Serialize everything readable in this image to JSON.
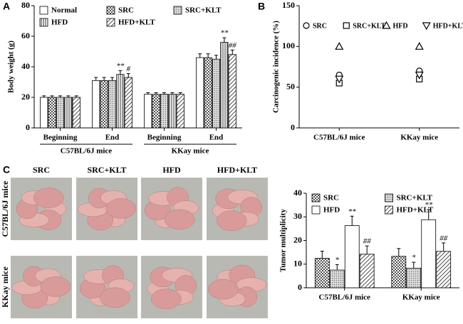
{
  "panel_labels": [
    "A",
    "B",
    "C"
  ],
  "photo_grid": {
    "columns": [
      "SRC",
      "SRC+KLT",
      "HFD",
      "HFD+KLT"
    ],
    "rows": [
      "C57BL/6J mice",
      "KKay mice"
    ]
  },
  "chart_data": [
    {
      "type": "bar",
      "y_label": "Body weight (g)",
      "categories": [
        "Beginning",
        "End",
        "Beginning",
        "End"
      ],
      "category_groups": [
        "C57BL/6J mice",
        "KKay mice"
      ],
      "ylim": [
        0,
        80
      ],
      "yticks": [
        0,
        20,
        40,
        60,
        80
      ],
      "legend": "top-left",
      "legend_columns": 3,
      "series": [
        {
          "name": "Normal",
          "color": "#ffffff",
          "pattern": "solid",
          "values": [
            20,
            31,
            22,
            46
          ],
          "errors": [
            1,
            2,
            1,
            2.5
          ]
        },
        {
          "name": "SRC",
          "color": "#888888",
          "pattern": "checker",
          "values": [
            20,
            31,
            22,
            46
          ],
          "errors": [
            1,
            2,
            1,
            2.5
          ]
        },
        {
          "name": "SRC+KLT",
          "color": "#999999",
          "pattern": "dots",
          "values": [
            20,
            31,
            22,
            45
          ],
          "errors": [
            1,
            2,
            1,
            2.5
          ]
        },
        {
          "name": "HFD",
          "color": "#666666",
          "pattern": "vertical",
          "values": [
            20,
            35,
            22,
            56
          ],
          "errors": [
            1,
            2.5,
            1,
            3
          ],
          "significance": [
            null,
            "**",
            null,
            "**"
          ]
        },
        {
          "name": "HFD+KLT",
          "color": "#444444",
          "pattern": "diagonal",
          "values": [
            20,
            33,
            22,
            48
          ],
          "errors": [
            1,
            2.5,
            1,
            3
          ],
          "significance": [
            null,
            "#",
            null,
            "##"
          ]
        }
      ]
    },
    {
      "type": "dot",
      "y_label": "Carcinogenic incidence (%)",
      "categories": [
        "C57BL/6J mice",
        "KKay mice"
      ],
      "ylim": [
        0,
        150
      ],
      "yticks": [
        0,
        50,
        100,
        150
      ],
      "legend": "top",
      "series": [
        {
          "name": "SRC",
          "color": "#000000",
          "marker": "circle",
          "values": [
            65,
            70
          ]
        },
        {
          "name": "SRC+KLT",
          "color": "#000000",
          "marker": "square",
          "values": [
            55,
            60
          ]
        },
        {
          "name": "HFD",
          "color": "#000000",
          "marker": "triangle",
          "values": [
            100,
            100
          ]
        },
        {
          "name": "HFD+KLT",
          "color": "#000000",
          "marker": "triangle-down",
          "values": [
            60,
            65
          ]
        }
      ]
    },
    {
      "type": "bar",
      "y_label": "Tumor multiplicity",
      "categories": [
        "C57BL/6J mice",
        "KKay mice"
      ],
      "ylim": [
        0,
        40
      ],
      "yticks": [
        0,
        10,
        20,
        30,
        40
      ],
      "legend": "top-left",
      "legend_columns": 2,
      "series": [
        {
          "name": "SRC",
          "color": "#888888",
          "pattern": "checker",
          "values": [
            12.5,
            13.3
          ],
          "errors": [
            3,
            3.3
          ]
        },
        {
          "name": "SRC+KLT",
          "color": "#999999",
          "pattern": "dots",
          "values": [
            7.5,
            8.3
          ],
          "errors": [
            2.3,
            2.5
          ],
          "significance": [
            "*",
            "*"
          ]
        },
        {
          "name": "HFD",
          "color": "#ffffff",
          "pattern": "solid",
          "values": [
            26.3,
            28.8
          ],
          "errors": [
            4,
            4.3
          ],
          "significance": [
            "**",
            "**"
          ]
        },
        {
          "name": "HFD+KLT",
          "color": "#444444",
          "pattern": "diagonal",
          "values": [
            14.2,
            15.4
          ],
          "errors": [
            3.5,
            3.6
          ],
          "significance": [
            "##",
            "##"
          ]
        }
      ]
    }
  ]
}
